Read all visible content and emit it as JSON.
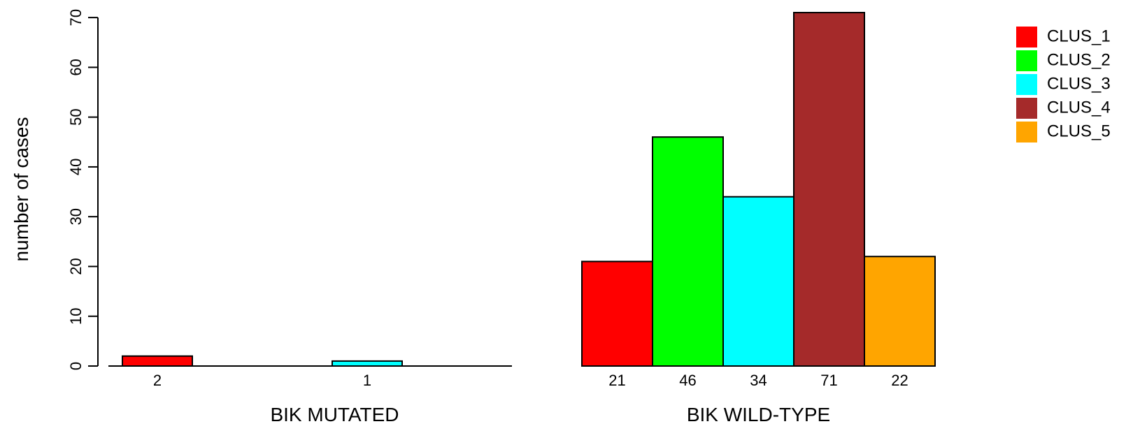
{
  "chart_data": {
    "type": "bar",
    "ylabel": "number of cases",
    "ylim": [
      0,
      70
    ],
    "yticks": [
      0,
      10,
      20,
      30,
      40,
      50,
      60,
      70
    ],
    "groups": [
      {
        "label": "BIK MUTATED",
        "bars": [
          {
            "series": "CLUS_1",
            "value": 2,
            "label": "2"
          },
          {
            "series": "CLUS_3",
            "value": 1,
            "label": "1"
          }
        ]
      },
      {
        "label": "BIK WILD-TYPE",
        "bars": [
          {
            "series": "CLUS_1",
            "value": 21,
            "label": "21"
          },
          {
            "series": "CLUS_2",
            "value": 46,
            "label": "46"
          },
          {
            "series": "CLUS_3",
            "value": 34,
            "label": "34"
          },
          {
            "series": "CLUS_4",
            "value": 71,
            "label": "71"
          },
          {
            "series": "CLUS_5",
            "value": 22,
            "label": "22"
          }
        ]
      }
    ],
    "legend": {
      "placement": "top-right",
      "entries": [
        {
          "name": "CLUS_1",
          "color": "#ff0000"
        },
        {
          "name": "CLUS_2",
          "color": "#00ff00"
        },
        {
          "name": "CLUS_3",
          "color": "#00ffff"
        },
        {
          "name": "CLUS_4",
          "color": "#a52a2a"
        },
        {
          "name": "CLUS_5",
          "color": "#ffa500"
        }
      ]
    }
  }
}
